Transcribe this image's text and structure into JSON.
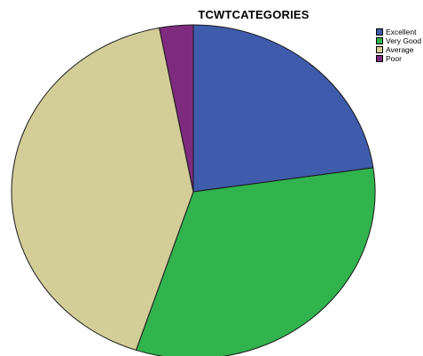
{
  "chart_data": {
    "type": "pie",
    "title": "TCWTCATEGORIES",
    "categories": [
      "Excellent",
      "Very Good",
      "Average",
      "Poor"
    ],
    "values": [
      22.7,
      32.4,
      41.9,
      3.0
    ],
    "value_unit": "percent",
    "start_angle_degrees": 0,
    "direction": "clockwise",
    "colors": [
      "#3f5bab",
      "#31b34d",
      "#d3cd98",
      "#7e2a7e"
    ],
    "legend_position": "top-right",
    "grid": false
  }
}
